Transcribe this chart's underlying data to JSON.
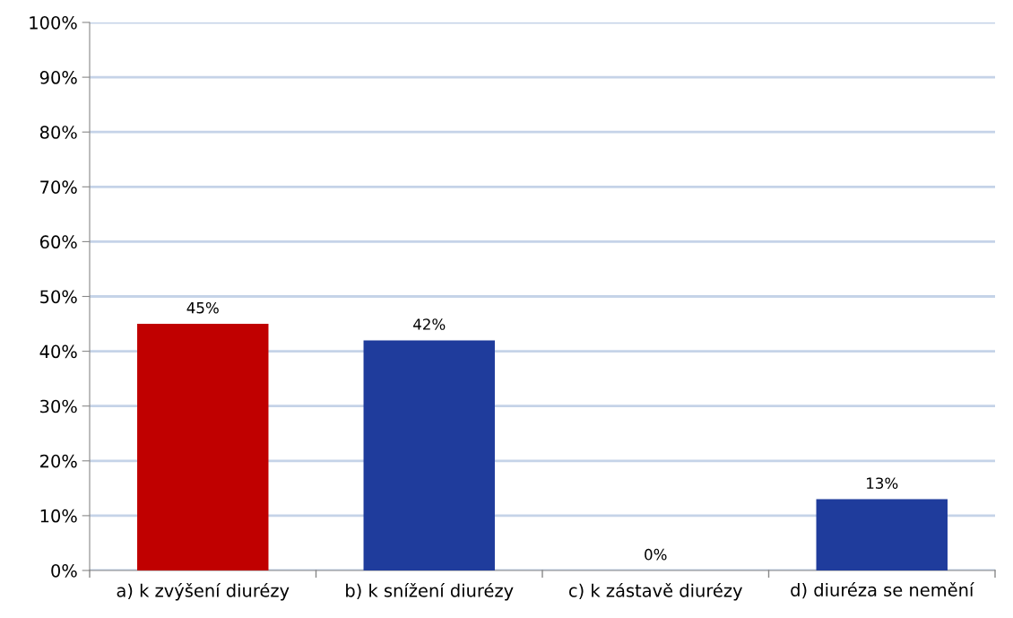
{
  "chart_data": {
    "type": "bar",
    "categories": [
      "a) k zvýšení diurézy",
      "b) k snížení diurézy",
      "c) k zástavě diurézy",
      "d) diuréza se nemění"
    ],
    "values": [
      45,
      42,
      0,
      13
    ],
    "colors": [
      "#c00000",
      "#1f3c9c",
      "#1f3c9c",
      "#1f3c9c"
    ],
    "value_labels": [
      "45%",
      "42%",
      "0%",
      "13%"
    ],
    "ylim": [
      0,
      100
    ],
    "yticks": [
      {
        "value": 0,
        "label": "0%"
      },
      {
        "value": 10,
        "label": "10%"
      },
      {
        "value": 20,
        "label": "20%"
      },
      {
        "value": 30,
        "label": "30%"
      },
      {
        "value": 40,
        "label": "40%"
      },
      {
        "value": 50,
        "label": "50%"
      },
      {
        "value": 60,
        "label": "60%"
      },
      {
        "value": 70,
        "label": "70%"
      },
      {
        "value": 80,
        "label": "80%"
      },
      {
        "value": 90,
        "label": "90%"
      },
      {
        "value": 100,
        "label": "100%"
      }
    ],
    "grid": "y",
    "legend": false
  }
}
